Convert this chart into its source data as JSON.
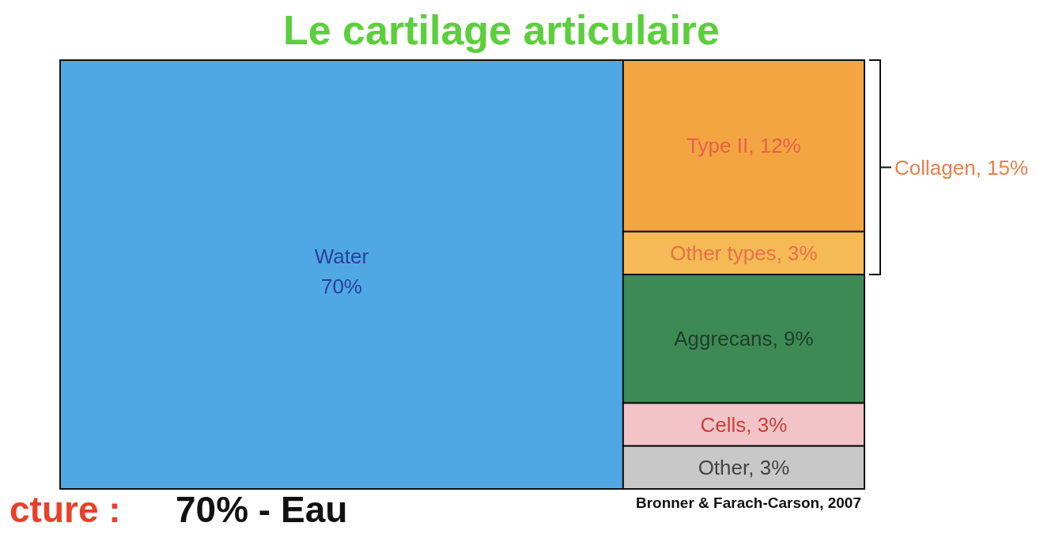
{
  "chart_data": {
    "type": "other",
    "title": "Le cartilage articulaire",
    "categories": [
      "Water",
      "Type II",
      "Other types",
      "Aggrecans",
      "Cells",
      "Other"
    ],
    "values": [
      70,
      12,
      3,
      9,
      3,
      3
    ],
    "value_labels": [
      "70%",
      ", 12%",
      ", 3%",
      ", 9%",
      ", 3%",
      ", 3%"
    ],
    "colors": [
      "#4fa8e3",
      "#f2a541",
      "#f5b955",
      "#3d8a55",
      "#f2c4c8",
      "#c8c8c8"
    ],
    "annotations": [
      "Collagen, 15%",
      "Bronner & Farach-Carson, 2007",
      "cture :",
      "70% - Eau"
    ]
  }
}
